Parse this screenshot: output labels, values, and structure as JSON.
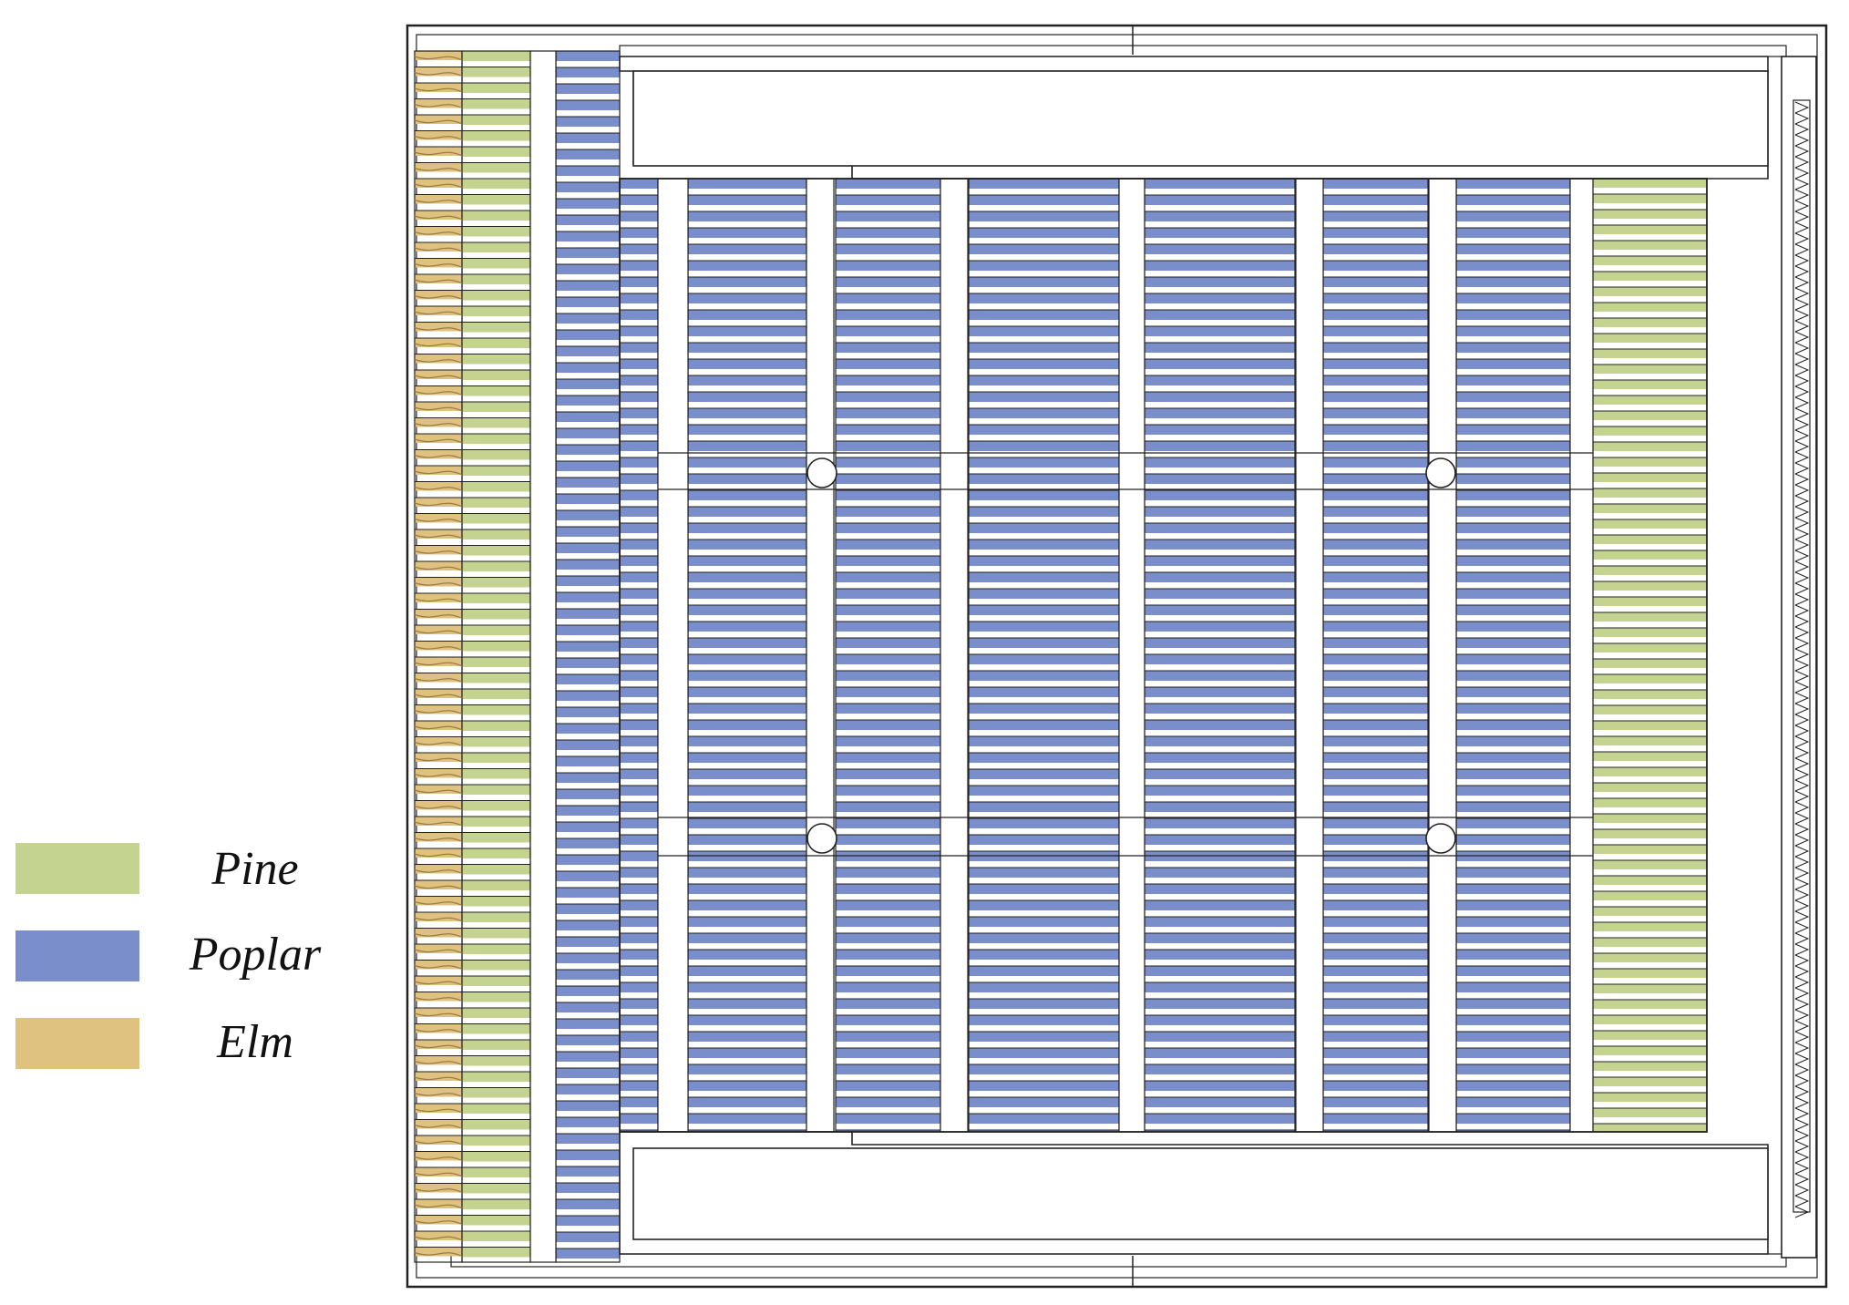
{
  "legend": {
    "items": [
      {
        "label": "Pine",
        "color": "#c5d391"
      },
      {
        "label": "Poplar",
        "color": "#7a8ecb"
      },
      {
        "label": "Elm",
        "color": "#dfc27f"
      }
    ]
  },
  "floor_plan": {
    "stripe_colors": {
      "pine": "#c5d391",
      "poplar": "#7a8ecb",
      "elm": "#dfc27f",
      "gap": "#ffffff",
      "line": "#222222"
    },
    "pillars": 4
  }
}
